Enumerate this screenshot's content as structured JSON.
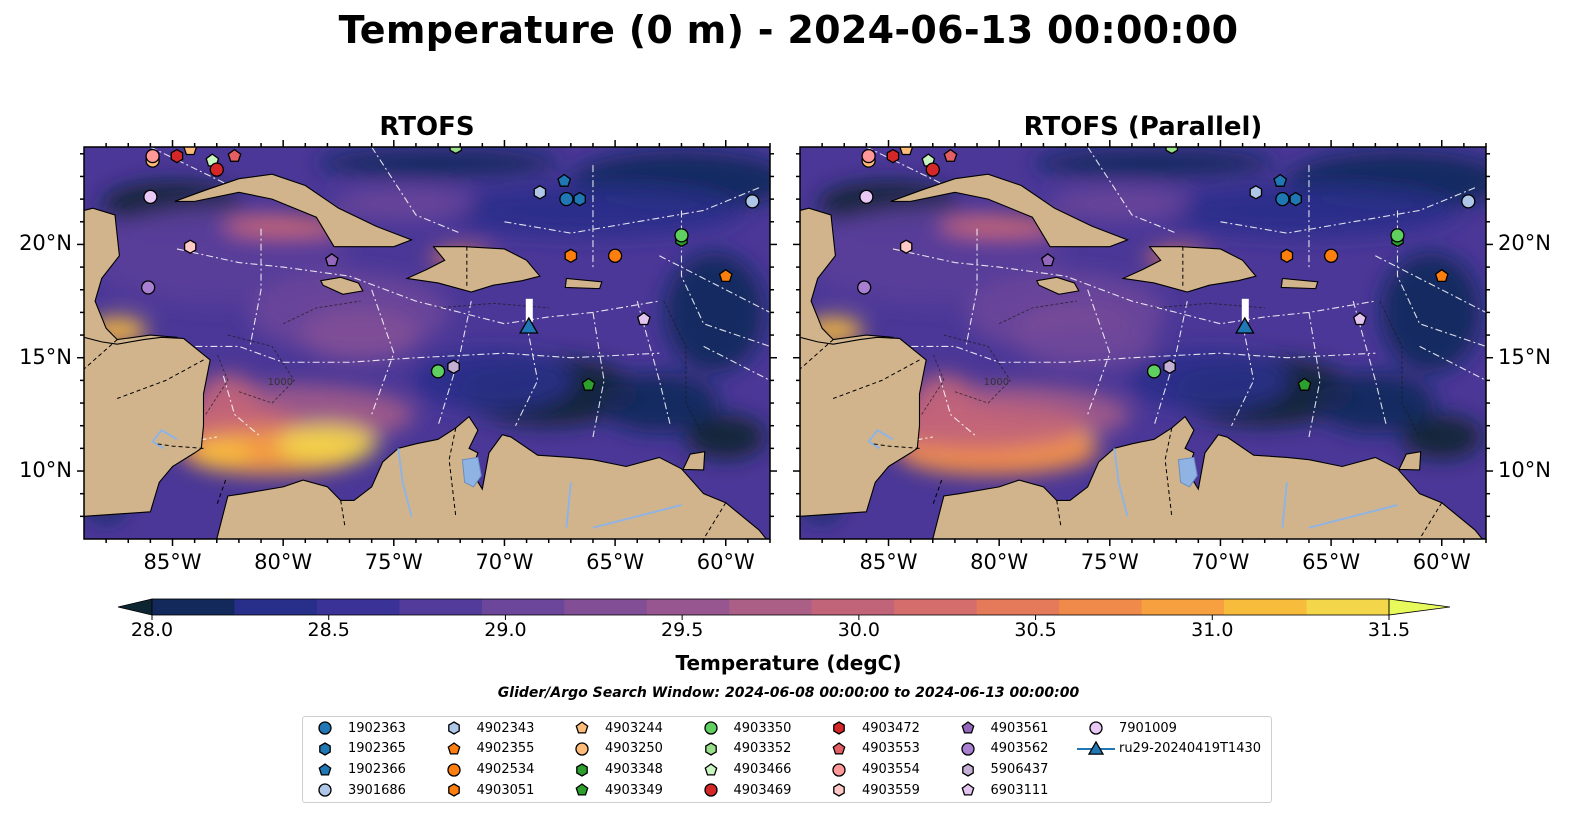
{
  "title": "Temperature (0 m) - 2024-06-13 00:00:00",
  "panels": [
    {
      "title": "RTOFS"
    },
    {
      "title": "RTOFS (Parallel)"
    }
  ],
  "map": {
    "lon_range": [
      -89,
      -58
    ],
    "lat_range": [
      7,
      24.3
    ],
    "lon_ticks": [
      {
        "value": -85,
        "label": "85°W"
      },
      {
        "value": -80,
        "label": "80°W"
      },
      {
        "value": -75,
        "label": "75°W"
      },
      {
        "value": -70,
        "label": "70°W"
      },
      {
        "value": -65,
        "label": "65°W"
      },
      {
        "value": -60,
        "label": "60°W"
      }
    ],
    "lat_ticks": [
      {
        "value": 20,
        "label": "20°N"
      },
      {
        "value": 15,
        "label": "15°N"
      },
      {
        "value": 10,
        "label": "10°N"
      }
    ],
    "contour_label": "1000",
    "land_color": "#d2b48c",
    "lake_color": "#8fb4e3"
  },
  "colorbar": {
    "min": 28.0,
    "max": 31.5,
    "step": 0.25,
    "ticks": [
      "28.0",
      "28.5",
      "29.0",
      "29.5",
      "30.0",
      "30.5",
      "31.0",
      "31.5"
    ],
    "colors": [
      "#0d2530",
      "#13295b",
      "#282f8a",
      "#3b3298",
      "#523b9a",
      "#6c469a",
      "#824f97",
      "#97568f",
      "#ab5e86",
      "#c1647a",
      "#d56d6d",
      "#e57a5b",
      "#f08a4b",
      "#f7a03f",
      "#f8bc3c",
      "#f3d64a",
      "#e8fa5b"
    ],
    "label": "Temperature (degC)"
  },
  "search_window": "Glider/Argo Search Window: 2024-06-08 00:00:00 to 2024-06-13 00:00:00",
  "legend": [
    {
      "id": "1902363",
      "marker": "circle",
      "color": "#1f77b4"
    },
    {
      "id": "1902365",
      "marker": "hexagon",
      "color": "#1f77b4"
    },
    {
      "id": "1902366",
      "marker": "pentagon",
      "color": "#1f77b4"
    },
    {
      "id": "3901686",
      "marker": "circle",
      "color": "#aec7e8"
    },
    {
      "id": "4902343",
      "marker": "hexagon",
      "color": "#aec7e8"
    },
    {
      "id": "4902355",
      "marker": "pentagon",
      "color": "#ff7f0e"
    },
    {
      "id": "4902534",
      "marker": "circle",
      "color": "#ff7f0e"
    },
    {
      "id": "4903051",
      "marker": "hexagon",
      "color": "#ff7f0e"
    },
    {
      "id": "4903244",
      "marker": "pentagon",
      "color": "#ffbb78"
    },
    {
      "id": "4903250",
      "marker": "circle",
      "color": "#ffbb78"
    },
    {
      "id": "4903348",
      "marker": "hexagon",
      "color": "#2ca02c"
    },
    {
      "id": "4903349",
      "marker": "pentagon",
      "color": "#2ca02c"
    },
    {
      "id": "4903350",
      "marker": "circle",
      "color": "#5fcf5f"
    },
    {
      "id": "4903352",
      "marker": "hexagon",
      "color": "#98df8a"
    },
    {
      "id": "4903466",
      "marker": "pentagon",
      "color": "#c9f5c0"
    },
    {
      "id": "4903469",
      "marker": "circle",
      "color": "#d62728"
    },
    {
      "id": "4903472",
      "marker": "hexagon",
      "color": "#d62728"
    },
    {
      "id": "4903553",
      "marker": "pentagon",
      "color": "#e45f63"
    },
    {
      "id": "4903554",
      "marker": "circle",
      "color": "#ff9896"
    },
    {
      "id": "4903559",
      "marker": "hexagon",
      "color": "#ffc9c7"
    },
    {
      "id": "4903561",
      "marker": "pentagon",
      "color": "#9467bd"
    },
    {
      "id": "4903562",
      "marker": "circle",
      "color": "#a97fd1"
    },
    {
      "id": "5906437",
      "marker": "hexagon",
      "color": "#c5b0d5"
    },
    {
      "id": "6903111",
      "marker": "pentagon",
      "color": "#e2c4ef"
    },
    {
      "id": "7901009",
      "marker": "circle",
      "color": "#e8c8f5"
    },
    {
      "id": "ru29-20240419T1430",
      "marker": "triangle-line",
      "color": "#1f77b4"
    }
  ],
  "floats": [
    {
      "id": "1902363",
      "lon": -67.2,
      "lat": 22.0
    },
    {
      "id": "1902365",
      "lon": -66.6,
      "lat": 22.0
    },
    {
      "id": "1902366",
      "lon": -67.3,
      "lat": 22.8
    },
    {
      "id": "3901686",
      "lon": -58.8,
      "lat": 21.9
    },
    {
      "id": "4902343",
      "lon": -68.4,
      "lat": 22.3
    },
    {
      "id": "4902355",
      "lon": -60.0,
      "lat": 18.6
    },
    {
      "id": "4902534",
      "lon": -65.0,
      "lat": 19.5
    },
    {
      "id": "4903051",
      "lon": -67.0,
      "lat": 19.5
    },
    {
      "id": "4903244",
      "lon": -84.2,
      "lat": 24.2
    },
    {
      "id": "4903250",
      "lon": -85.9,
      "lat": 23.7
    },
    {
      "id": "4903348",
      "lon": -62.0,
      "lat": 20.2
    },
    {
      "id": "4903349",
      "lon": -66.2,
      "lat": 13.8
    },
    {
      "id": "4903350",
      "lon": -62.0,
      "lat": 20.4
    },
    {
      "id": "4903352",
      "lon": -72.2,
      "lat": 24.3
    },
    {
      "id": "4903466",
      "lon": -83.2,
      "lat": 23.7
    },
    {
      "id": "4903469",
      "lon": -83.0,
      "lat": 23.3
    },
    {
      "id": "4903472",
      "lon": -84.8,
      "lat": 23.9
    },
    {
      "id": "4903553",
      "lon": -82.2,
      "lat": 23.9
    },
    {
      "id": "4903554",
      "lon": -85.9,
      "lat": 23.9
    },
    {
      "id": "4903559",
      "lon": -84.2,
      "lat": 19.9
    },
    {
      "id": "4903561",
      "lon": -77.8,
      "lat": 19.3
    },
    {
      "id": "4903562",
      "lon": -86.1,
      "lat": 18.1
    },
    {
      "id": "5906437",
      "lon": -72.3,
      "lat": 14.6
    },
    {
      "id": "6903111",
      "lon": -63.7,
      "lat": 16.7
    },
    {
      "id": "7901009",
      "lon": -86.0,
      "lat": 22.1
    },
    {
      "id": "4903350b",
      "lon": -73.0,
      "lat": 14.4,
      "style_of": "4903350"
    }
  ],
  "glider": {
    "id": "ru29-20240419T1430",
    "lon": -68.9,
    "lat": 16.4,
    "track_top_lat": 17.6
  }
}
